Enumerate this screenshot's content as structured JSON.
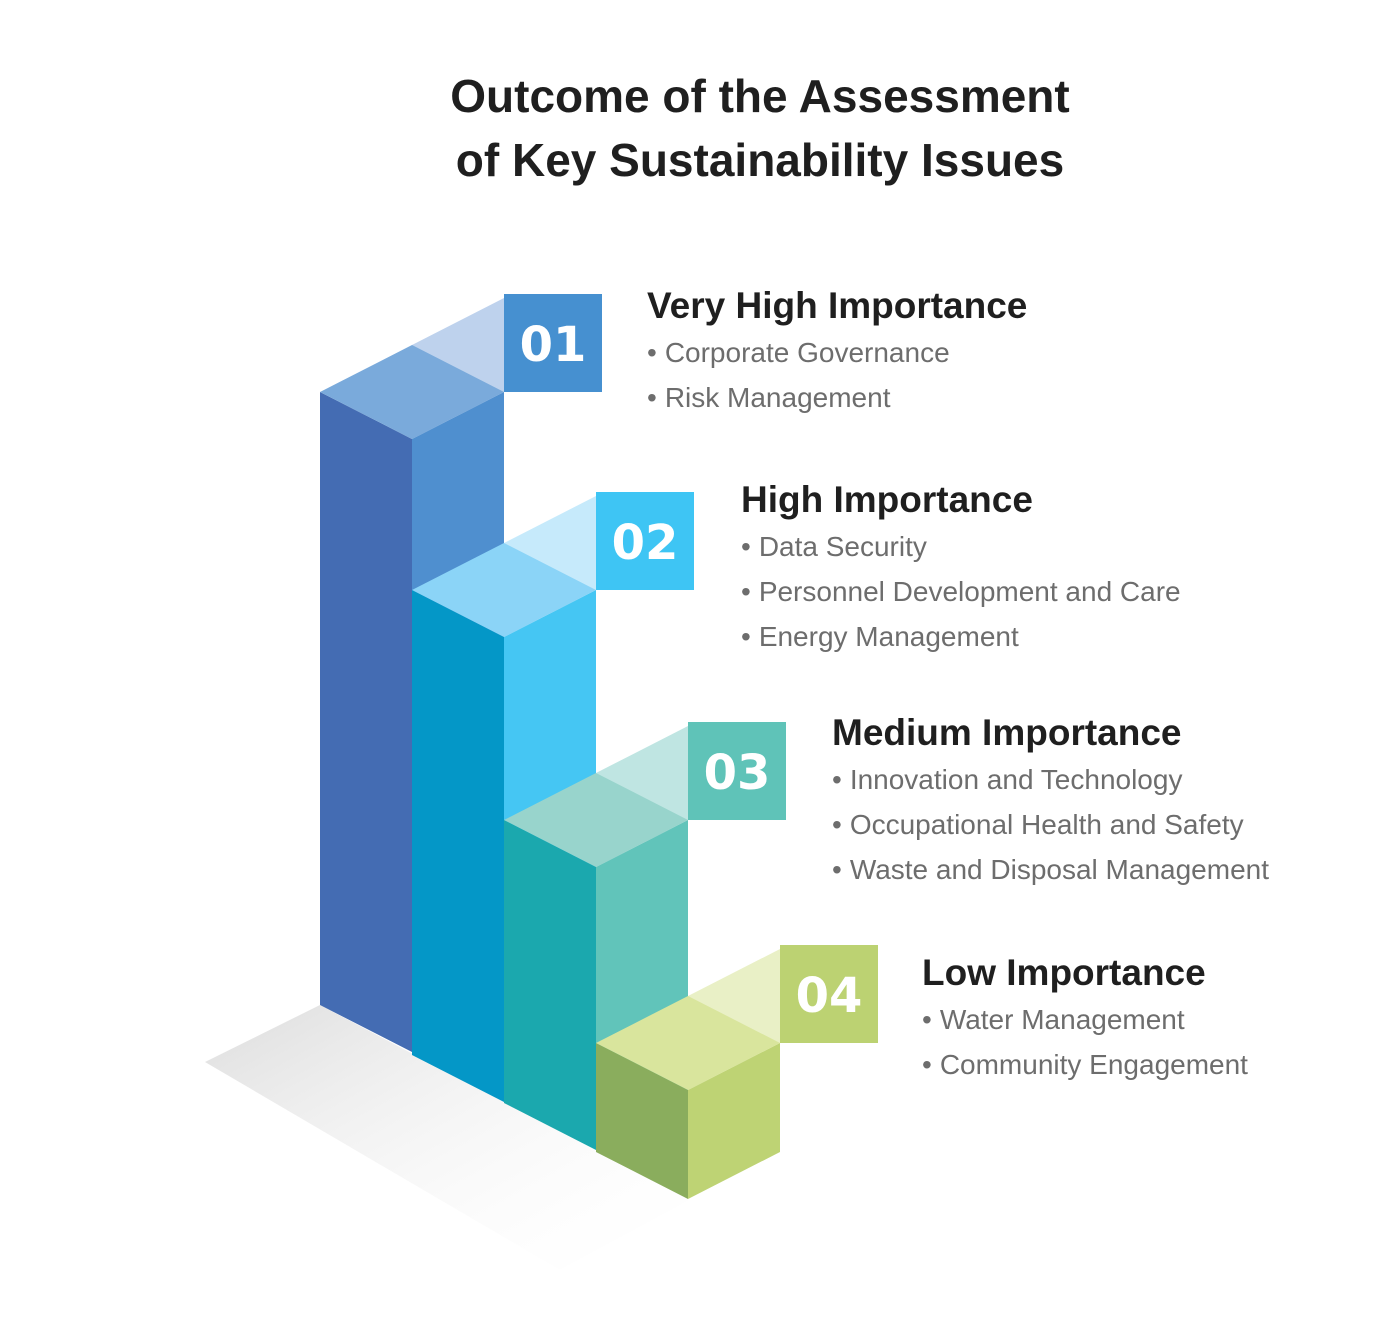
{
  "title": {
    "line1": "Outcome of the Assessment",
    "line2": "of Key Sustainability Issues"
  },
  "levels": [
    {
      "number": "01",
      "heading": "Very High Importance",
      "items": [
        "Corporate Governance",
        "Risk Management"
      ],
      "colors": {
        "top": "#7aaadb",
        "front": "#446cb3",
        "side": "#4f8fcf",
        "badge": "#4690d0",
        "badge_light": "#bed2ed"
      }
    },
    {
      "number": "02",
      "heading": "High Importance",
      "items": [
        "Data Security",
        "Personnel Development and Care",
        "Energy Management"
      ],
      "colors": {
        "top": "#8bd4f7",
        "front": "#0497c7",
        "side": "#45c6f3",
        "badge": "#3ec5f4",
        "badge_light": "#c6eafb"
      }
    },
    {
      "number": "03",
      "heading": "Medium Importance",
      "items": [
        "Innovation and Technology",
        "Occupational Health and Safety",
        "Waste and Disposal Management"
      ],
      "colors": {
        "top": "#98d4cc",
        "front": "#1ba8ae",
        "side": "#61c4ba",
        "badge": "#5fc3b8",
        "badge_light": "#bfe5e2"
      }
    },
    {
      "number": "04",
      "heading": "Low Importance",
      "items": [
        "Water Management",
        "Community Engagement"
      ],
      "colors": {
        "top": "#d9e59d",
        "front": "#8aad5d",
        "side": "#bed374",
        "badge": "#bcd272",
        "badge_light": "#e9f0c6"
      }
    }
  ]
}
